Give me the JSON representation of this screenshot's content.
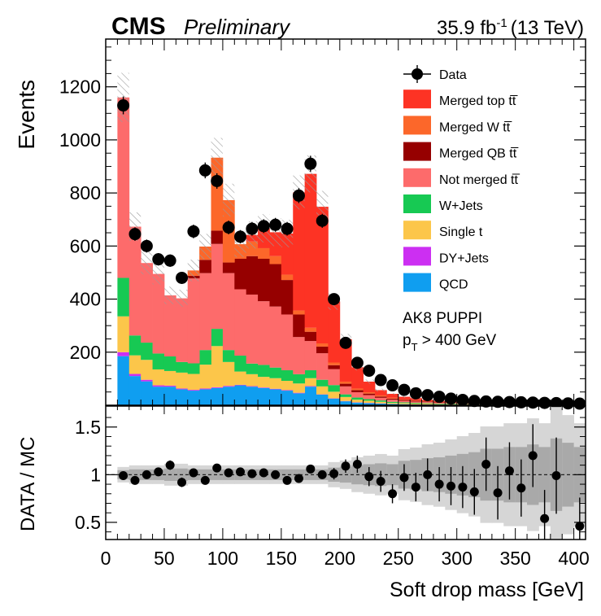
{
  "header": {
    "experiment": "CMS",
    "status": "Preliminary",
    "lumi_html_base": "35.9 fb",
    "lumi_exp": "-1",
    "energy": "(13 TeV)"
  },
  "annotation": {
    "line1": "AK8 PUPPI",
    "line2_p": "p",
    "line2_sub": "T",
    "line2_rest": " > 400 GeV"
  },
  "legend_labels": [
    "Data",
    "Merged top tt̅",
    "Merged W tt̅",
    "Merged QB tt̅",
    "Not merged tt̅",
    "W+Jets",
    "Single t",
    "DY+Jets",
    "QCD"
  ],
  "chart_data": [
    {
      "type": "stacked-bar",
      "panel": "main",
      "xlabel": "Soft drop mass [GeV]",
      "ylabel": "Events",
      "xlim": [
        0,
        410
      ],
      "ylim": [
        0,
        1380
      ],
      "xticks": [
        0,
        50,
        100,
        150,
        200,
        250,
        300,
        350,
        400
      ],
      "yticks": [
        200,
        400,
        600,
        800,
        1000,
        1200
      ],
      "bin_edges": [
        10,
        20,
        30,
        40,
        50,
        60,
        70,
        80,
        90,
        100,
        110,
        120,
        130,
        140,
        150,
        160,
        170,
        180,
        190,
        200,
        210,
        220,
        230,
        240,
        250,
        260,
        270,
        280,
        290,
        300,
        310,
        320,
        330,
        340,
        350,
        360,
        370,
        380,
        390,
        400,
        410
      ],
      "stack_order": [
        "QCD",
        "DY+Jets",
        "Single t",
        "W+Jets",
        "Not merged tt",
        "Merged QB tt",
        "Merged W tt",
        "Merged top tt"
      ],
      "series": [
        {
          "name": "QCD",
          "color": "#0f9ef0",
          "values": [
            185,
            110,
            90,
            70,
            70,
            60,
            55,
            60,
            65,
            70,
            75,
            70,
            65,
            60,
            55,
            45,
            70,
            40,
            25,
            15,
            10,
            8,
            6,
            5,
            4,
            3,
            3,
            2,
            2,
            2,
            2,
            1,
            1,
            1,
            1,
            1,
            1,
            1,
            1,
            1
          ]
        },
        {
          "name": "DY+Jets",
          "color": "#cc2ff2",
          "values": [
            15,
            8,
            6,
            5,
            4,
            3,
            3,
            3,
            3,
            3,
            2,
            2,
            2,
            2,
            2,
            2,
            2,
            1,
            1,
            1,
            1,
            1,
            1,
            0,
            0,
            0,
            0,
            0,
            0,
            0,
            0,
            0,
            0,
            0,
            0,
            0,
            0,
            0,
            0,
            0
          ]
        },
        {
          "name": "Single t",
          "color": "#fcc64a",
          "values": [
            135,
            70,
            75,
            60,
            55,
            60,
            60,
            90,
            155,
            90,
            50,
            45,
            40,
            40,
            35,
            35,
            30,
            30,
            25,
            15,
            10,
            8,
            6,
            4,
            4,
            3,
            3,
            2,
            2,
            2,
            1,
            1,
            1,
            1,
            1,
            1,
            1,
            1,
            1,
            1
          ]
        },
        {
          "name": "W+Jets",
          "color": "#17c953",
          "values": [
            145,
            75,
            65,
            60,
            55,
            40,
            40,
            55,
            65,
            45,
            60,
            40,
            45,
            40,
            40,
            35,
            30,
            25,
            25,
            10,
            8,
            6,
            5,
            4,
            3,
            3,
            2,
            2,
            2,
            1,
            1,
            1,
            1,
            1,
            1,
            1,
            1,
            1,
            1,
            1
          ]
        },
        {
          "name": "Not merged tt",
          "color": "#fd6b6b",
          "values": [
            680,
            410,
            300,
            300,
            230,
            240,
            320,
            290,
            320,
            290,
            250,
            260,
            240,
            230,
            210,
            140,
            110,
            100,
            60,
            30,
            20,
            15,
            10,
            8,
            6,
            5,
            4,
            3,
            3,
            2,
            2,
            1,
            1,
            1,
            1,
            1,
            1,
            1,
            1,
            1
          ]
        },
        {
          "name": "Merged QB tt",
          "color": "#960000",
          "values": [
            0,
            0,
            0,
            0,
            0,
            0,
            10,
            50,
            50,
            40,
            115,
            145,
            160,
            160,
            130,
            85,
            35,
            25,
            15,
            10,
            8,
            6,
            5,
            4,
            3,
            3,
            2,
            2,
            1,
            1,
            1,
            1,
            1,
            1,
            1,
            1,
            1,
            0,
            0,
            0
          ]
        },
        {
          "name": "Merged W tt",
          "color": "#fc672a",
          "values": [
            0,
            0,
            0,
            0,
            0,
            0,
            20,
            50,
            275,
            235,
            55,
            55,
            40,
            30,
            20,
            15,
            15,
            12,
            10,
            8,
            6,
            5,
            4,
            3,
            2,
            2,
            1,
            1,
            1,
            1,
            1,
            1,
            1,
            1,
            0,
            0,
            0,
            0,
            0,
            0
          ]
        },
        {
          "name": "Merged top tt",
          "color": "#fd3324",
          "values": [
            0,
            0,
            0,
            0,
            0,
            0,
            0,
            0,
            0,
            0,
            0,
            25,
            75,
            90,
            155,
            445,
            580,
            515,
            230,
            160,
            80,
            40,
            20,
            15,
            10,
            8,
            5,
            4,
            3,
            3,
            2,
            2,
            2,
            2,
            2,
            1,
            1,
            1,
            1,
            1
          ]
        }
      ],
      "data": {
        "name": "Data",
        "x": [
          15,
          25,
          35,
          45,
          55,
          65,
          75,
          85,
          95,
          105,
          115,
          125,
          135,
          145,
          155,
          165,
          175,
          185,
          195,
          205,
          215,
          225,
          235,
          245,
          255,
          265,
          275,
          285,
          295,
          305,
          315,
          325,
          335,
          345,
          355,
          365,
          375,
          385,
          395,
          405
        ],
        "y": [
          1130,
          645,
          600,
          550,
          545,
          480,
          655,
          885,
          845,
          670,
          635,
          665,
          675,
          680,
          665,
          790,
          910,
          695,
          400,
          235,
          160,
          130,
          95,
          75,
          58,
          45,
          38,
          32,
          25,
          20,
          16,
          14,
          13,
          12,
          11,
          10,
          9,
          8,
          7,
          6
        ]
      }
    },
    {
      "type": "scatter",
      "panel": "ratio",
      "xlabel": "Soft drop mass [GeV]",
      "ylabel": "DATA / MC",
      "xlim": [
        0,
        410
      ],
      "ylim": [
        0.32,
        1.72
      ],
      "yticks": [
        0.5,
        1,
        1.5
      ],
      "reference_line": 1,
      "x": [
        15,
        25,
        35,
        45,
        55,
        65,
        75,
        85,
        95,
        105,
        115,
        125,
        135,
        145,
        155,
        165,
        175,
        185,
        195,
        205,
        215,
        225,
        235,
        245,
        255,
        265,
        275,
        285,
        295,
        305,
        315,
        325,
        335,
        345,
        355,
        365,
        375,
        385,
        395,
        405
      ],
      "y": [
        0.99,
        0.94,
        1.0,
        1.03,
        1.1,
        0.92,
        1.02,
        0.94,
        1.07,
        1.02,
        1.03,
        1.01,
        1.02,
        1.0,
        0.94,
        0.96,
        1.06,
        1.0,
        1.01,
        1.09,
        1.11,
        0.98,
        0.93,
        0.8,
        0.97,
        0.87,
        1.0,
        0.9,
        0.88,
        0.87,
        0.82,
        1.11,
        0.81,
        1.04,
        0.86,
        1.2,
        0.54,
        0.99,
        null,
        0.46
      ],
      "err": [
        0.03,
        0.04,
        0.04,
        0.04,
        0.05,
        0.05,
        0.04,
        0.04,
        0.04,
        0.04,
        0.04,
        0.04,
        0.04,
        0.04,
        0.04,
        0.04,
        0.04,
        0.04,
        0.06,
        0.07,
        0.09,
        0.1,
        0.11,
        0.1,
        0.14,
        0.15,
        0.17,
        0.18,
        0.2,
        0.22,
        0.24,
        0.28,
        0.28,
        0.3,
        0.3,
        0.33,
        0.3,
        0.4,
        null,
        0.3
      ]
    }
  ]
}
